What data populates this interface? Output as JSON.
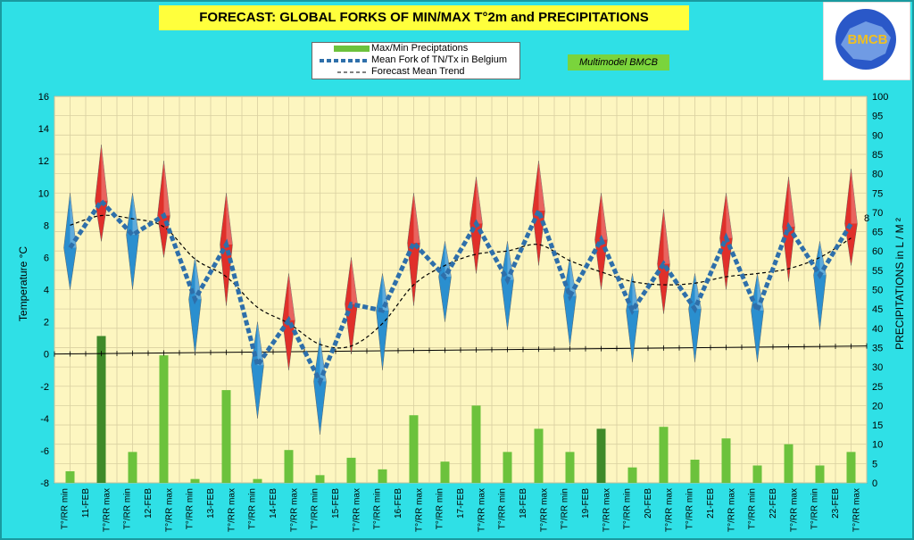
{
  "title": "FORECAST: GLOBAL FORKS OF  MIN/MAX T°2m and PRECIPITATIONS",
  "badge": "Multimodel BMCB",
  "logo_text": "BMCB",
  "colors": {
    "bg": "#2fe0e6",
    "plot": "#fdf6c0",
    "grid": "#d9d0a0",
    "bar": "#6cc23c",
    "bar_dark": "#3f8a2a",
    "red": "#e0302a",
    "blue": "#2a8fcf",
    "mean": "#2e6faa"
  },
  "chart_data": {
    "type": "combo",
    "legend": [
      "Max/Min Preciptations",
      "Mean Fork of TN/Tx in Belgium",
      "Forecast Mean Trend"
    ],
    "ylabel": "Temperature  °C",
    "y2label": "PRECIPITATIONS in L / M ²",
    "ylim": [
      -8,
      16
    ],
    "ystep": 2,
    "y2lim": [
      0,
      100
    ],
    "y2step": 5,
    "x_labels": [
      "T°/RR min",
      "11-FEB",
      "T°/RR max",
      "T°/RR min",
      "12-FEB",
      "T°/RR max",
      "T°/RR min",
      "13-FEB",
      "T°/RR max",
      "T°/RR min",
      "14-FEB",
      "T°/RR max",
      "T°/RR min",
      "15-FEB",
      "T°/RR max",
      "T°/RR min",
      "16-FEB",
      "T°/RR max",
      "T°/RR min",
      "17-FEB",
      "T°/RR max",
      "T°/RR min",
      "18-FEB",
      "T°/RR max",
      "T°/RR min",
      "19-FEB",
      "T°/RR max",
      "T°/RR min",
      "20-FEB",
      "T°/RR max",
      "T°/RR min",
      "21-FEB",
      "T°/RR max",
      "T°/RR min",
      "22-FEB",
      "T°/RR max",
      "T°/RR min",
      "23-FEB",
      "T°/RR max"
    ],
    "categories": [
      "T°/RR min",
      "T°/RR max",
      "T°/RR min",
      "T°/RR max",
      "T°/RR min",
      "T°/RR max",
      "T°/RR min",
      "T°/RR max",
      "T°/RR min",
      "T°/RR max",
      "T°/RR min",
      "T°/RR max",
      "T°/RR min",
      "T°/RR max",
      "T°/RR min",
      "T°/RR max",
      "T°/RR min",
      "T°/RR max",
      "T°/RR min",
      "T°/RR max",
      "T°/RR min",
      "T°/RR max",
      "T°/RR min",
      "T°/RR max",
      "T°/RR min",
      "T°/RR max"
    ],
    "series": [
      {
        "name": "Mean Fork of TN/Tx in Belgium",
        "values": [
          6.6,
          9.5,
          7.4,
          8.6,
          3.4,
          6.8,
          -0.7,
          2.1,
          -1.7,
          3.1,
          2.7,
          6.9,
          4.8,
          8.1,
          4.6,
          8.9,
          3.6,
          7.1,
          2.7,
          5.6,
          2.8,
          7.2,
          2.7,
          7.9,
          4.9,
          8.1
        ]
      },
      {
        "name": "fork_high",
        "values": [
          10.0,
          13.0,
          10.0,
          12.0,
          6.0,
          10.0,
          2.0,
          5.0,
          1.0,
          6.0,
          5.0,
          10.0,
          7.0,
          11.0,
          7.0,
          12.0,
          6.0,
          10.0,
          5.0,
          9.0,
          5.0,
          10.0,
          5.0,
          11.0,
          7.0,
          11.5
        ]
      },
      {
        "name": "fork_low",
        "values": [
          4.0,
          7.0,
          4.0,
          6.0,
          0.0,
          3.0,
          -4.0,
          -1.0,
          -5.0,
          0.0,
          -1.0,
          3.0,
          2.0,
          5.0,
          1.5,
          5.5,
          0.5,
          4.0,
          -0.5,
          2.5,
          -0.5,
          4.0,
          -0.5,
          4.5,
          1.5,
          5.5
        ]
      },
      {
        "name": "Forecast Mean Trend",
        "values": [
          8.0,
          8.6,
          8.4,
          7.9,
          5.9,
          4.8,
          2.9,
          1.9,
          0.6,
          0.5,
          1.9,
          4.3,
          5.5,
          6.2,
          6.4,
          6.8,
          5.8,
          5.1,
          4.5,
          4.3,
          4.4,
          4.8,
          5.0,
          5.3,
          6.0,
          7.2
        ]
      },
      {
        "name": "Max/Min Preciptations",
        "values": [
          3.0,
          38.0,
          8.0,
          33.0,
          1.0,
          24.0,
          1.0,
          8.5,
          2.0,
          6.5,
          3.5,
          17.5,
          5.5,
          20.0,
          8.0,
          14.0,
          8.0,
          14.0,
          4.0,
          14.5,
          6.0,
          11.5,
          4.5,
          10.0,
          4.5,
          8.0
        ]
      },
      {
        "name": "zero_trend",
        "values": [
          0.0,
          0.02,
          0.04,
          0.06,
          0.08,
          0.1,
          0.12,
          0.14,
          0.16,
          0.18,
          0.2,
          0.22,
          0.24,
          0.26,
          0.28,
          0.3,
          0.32,
          0.34,
          0.36,
          0.38,
          0.4,
          0.42,
          0.44,
          0.46,
          0.48,
          0.5
        ]
      }
    ],
    "annotation": "8",
    "grid": true
  }
}
